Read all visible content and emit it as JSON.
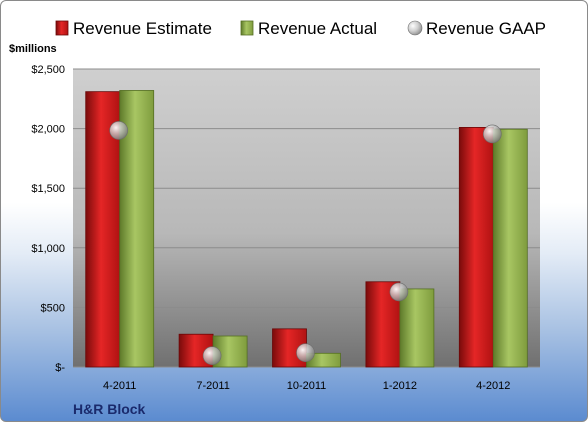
{
  "chart_data": {
    "type": "bar",
    "categories": [
      "4-2011",
      "7-2011",
      "10-2011",
      "1-2012",
      "4-2012"
    ],
    "series": [
      {
        "name": "Revenue Estimate",
        "values": [
          2310,
          275,
          320,
          715,
          2010
        ],
        "color": "#d11b1b",
        "style": "bar"
      },
      {
        "name": "Revenue Actual",
        "values": [
          2320,
          260,
          115,
          655,
          1995
        ],
        "color": "#8fae4a",
        "style": "bar"
      },
      {
        "name": "Revenue GAAP",
        "values": [
          1985,
          95,
          120,
          630,
          1955
        ],
        "color": "#b9b9b9",
        "style": "marker"
      }
    ],
    "ylabel": "$millions",
    "yticks": [
      "$-",
      "$500",
      "$1,000",
      "$1,500",
      "$2,000",
      "$2,500"
    ],
    "ylim": [
      0,
      2500
    ],
    "grid": true,
    "legend": "top",
    "footer": "H&R Block"
  }
}
